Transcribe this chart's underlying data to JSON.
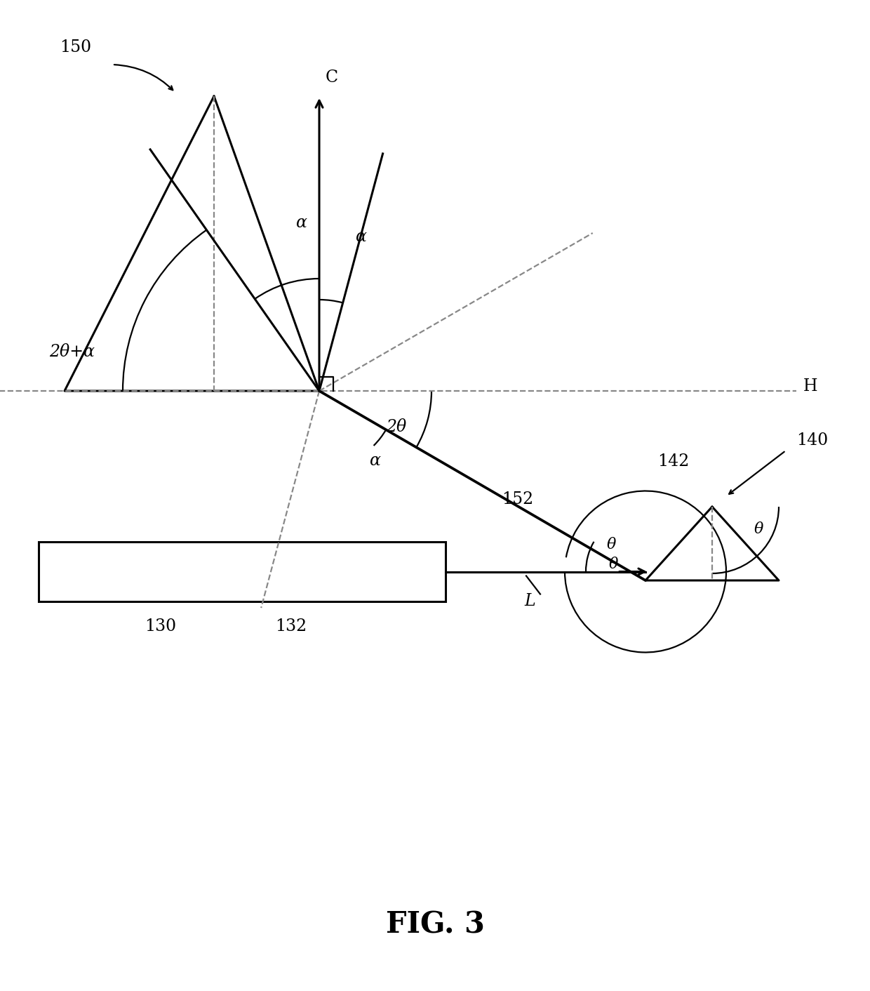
{
  "bg_color": "#ffffff",
  "line_color": "#000000",
  "dashed_color": "#888888",
  "fig_width": 12.4,
  "fig_height": 14.12,
  "title": "FIG. 3",
  "label_150": "150",
  "label_130": "130",
  "label_132": "132",
  "label_140": "140",
  "label_142": "142",
  "label_152": "152",
  "label_L": "L",
  "label_H": "H",
  "label_C": "C",
  "label_2theta": "2θ",
  "label_alpha_ur": "α",
  "label_alpha_ul": "α",
  "label_2thetaplusalpha": "2θ+α",
  "label_alpha_beam": "α",
  "label_theta1": "θ",
  "label_theta2": "θ",
  "label_theta3": "θ"
}
